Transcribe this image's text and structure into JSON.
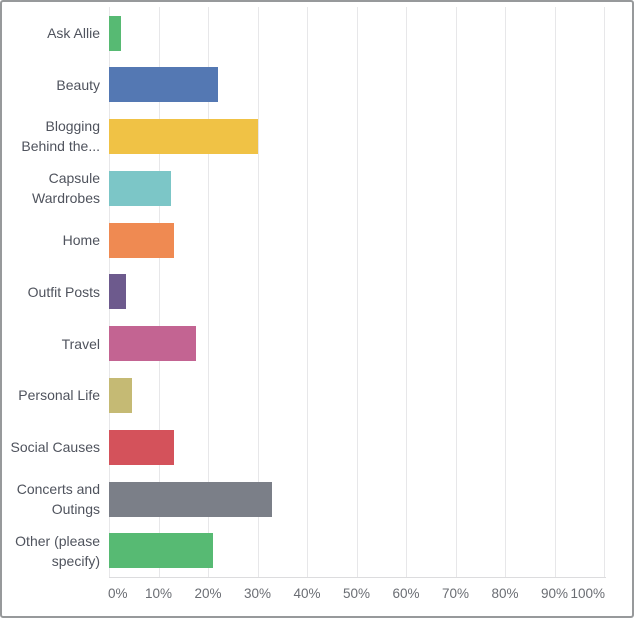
{
  "frame": {
    "border_color": "#97999b",
    "background_color": "#ffffff",
    "gridline_color": "#e7e7e9",
    "axis_line_color": "#dcdcde",
    "label_color": "#4f535d",
    "tick_color": "#6a6d73"
  },
  "chart_data": {
    "type": "bar",
    "orientation": "horizontal",
    "title": "",
    "xlabel": "",
    "ylabel": "",
    "categories": [
      "Ask Allie",
      "Beauty",
      "Blogging Behind the...",
      "Capsule Wardrobes",
      "Home",
      "Outfit Posts",
      "Travel",
      "Personal Life",
      "Social Causes",
      "Concerts and Outings",
      "Other (please specify)"
    ],
    "values": [
      2.5,
      22,
      30,
      12.6,
      13.2,
      3.4,
      17.5,
      4.6,
      13.2,
      33,
      21
    ],
    "value_unit": "%",
    "bar_colors": [
      "#57ba73",
      "#5478b3",
      "#f0c245",
      "#7cc6c7",
      "#ef8a52",
      "#6d5a8d",
      "#c36492",
      "#c5ba74",
      "#d4525b",
      "#7b7f88",
      "#57ba73"
    ],
    "x_ticks": [
      "0%",
      "10%",
      "20%",
      "30%",
      "40%",
      "50%",
      "60%",
      "70%",
      "80%",
      "90%",
      "100%"
    ],
    "xlim": [
      0,
      100
    ],
    "grid": "vertical",
    "legend": "none"
  }
}
